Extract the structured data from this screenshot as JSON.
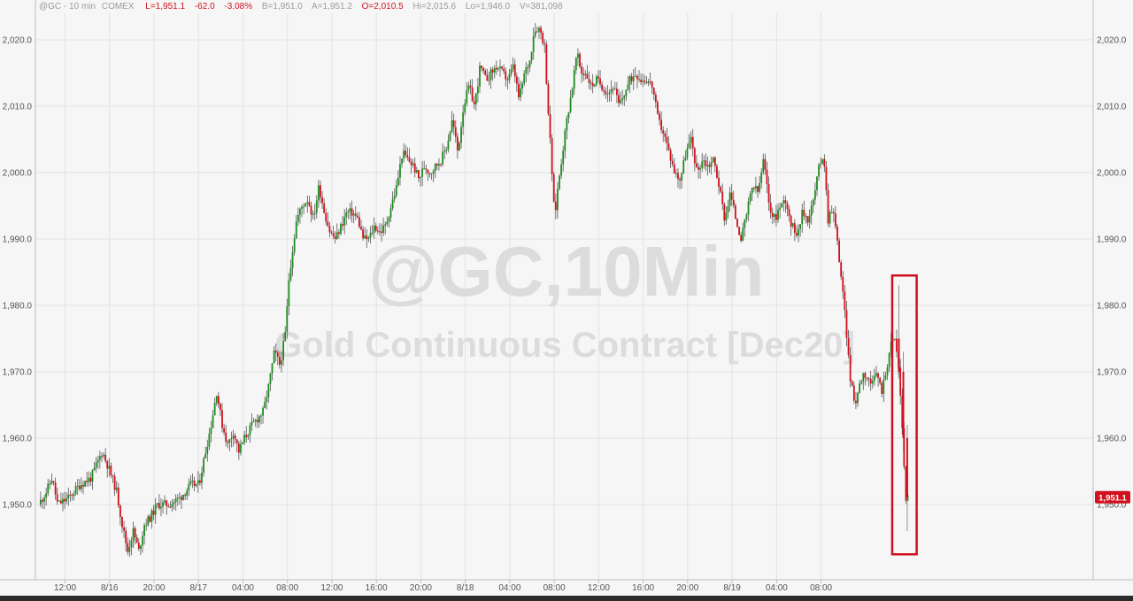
{
  "header": {
    "symbol": "@GC - 10 min",
    "exchange": "COMEX",
    "last": "L=1,951.1",
    "change": "-62.0",
    "change_pct": "-3.08%",
    "bid": "B=1,951.0",
    "ask": "A=1,951.2",
    "open": "O=2,010.5",
    "high": "Hi=2,015.6",
    "low": "Lo=1,946.0",
    "volume": "V=381,098"
  },
  "watermark": {
    "title": "@GC,10Min",
    "subtitle": "Gold Continuous Contract [Dec20]"
  },
  "last_price_label": "1,951.1",
  "colors": {
    "up": "#1e8c1e",
    "down": "#d0101c",
    "highlight_box": "#d0101c",
    "grid": "#e2e2e2"
  },
  "chart_data": {
    "type": "candlestick",
    "title": "@GC,10Min",
    "subtitle": "Gold Continuous Contract [Dec20]",
    "ylim": [
      1940,
      2025
    ],
    "y_ticks": [
      "1,950.0",
      "1,960.0",
      "1,970.0",
      "1,980.0",
      "1,990.0",
      "2,000.0",
      "2,010.0",
      "2,020.0"
    ],
    "y_tick_values": [
      1950,
      1960,
      1970,
      1980,
      1990,
      2000,
      2010,
      2020
    ],
    "x_ticks": [
      "12:00",
      "8/16",
      "20:00",
      "8/17",
      "04:00",
      "08:00",
      "12:00",
      "16:00",
      "20:00",
      "8/18",
      "04:00",
      "08:00",
      "12:00",
      "16:00",
      "20:00",
      "8/19",
      "04:00",
      "08:00"
    ],
    "x_tick_hours": [
      12,
      16,
      20,
      24,
      28,
      32,
      36,
      40,
      44,
      48,
      52,
      56,
      60,
      64,
      68,
      72,
      76,
      80
    ],
    "x_range_hours": [
      9.5,
      91.5
    ],
    "price_path": [
      [
        9.8,
        1950
      ],
      [
        10.5,
        1952
      ],
      [
        11.0,
        1954
      ],
      [
        11.5,
        1950
      ],
      [
        12.5,
        1951
      ],
      [
        13.5,
        1953
      ],
      [
        14.5,
        1954
      ],
      [
        15.5,
        1958
      ],
      [
        16.2,
        1955
      ],
      [
        16.8,
        1952
      ],
      [
        17.3,
        1947
      ],
      [
        17.8,
        1943
      ],
      [
        18.3,
        1946
      ],
      [
        18.8,
        1943
      ],
      [
        19.3,
        1947
      ],
      [
        19.8,
        1948
      ],
      [
        20.5,
        1950
      ],
      [
        21.5,
        1950
      ],
      [
        22.5,
        1951
      ],
      [
        23.5,
        1953
      ],
      [
        24.2,
        1953
      ],
      [
        24.8,
        1958
      ],
      [
        25.3,
        1962
      ],
      [
        25.8,
        1967
      ],
      [
        26.3,
        1962
      ],
      [
        26.8,
        1959
      ],
      [
        27.3,
        1961
      ],
      [
        27.8,
        1958
      ],
      [
        28.3,
        1960
      ],
      [
        29.0,
        1962
      ],
      [
        29.5,
        1963
      ],
      [
        30.0,
        1964
      ],
      [
        30.5,
        1968
      ],
      [
        31.0,
        1973
      ],
      [
        31.5,
        1971
      ],
      [
        32.0,
        1976
      ],
      [
        32.3,
        1984
      ],
      [
        32.6,
        1988
      ],
      [
        33.0,
        1993
      ],
      [
        33.5,
        1995
      ],
      [
        34.0,
        1996
      ],
      [
        34.5,
        1993
      ],
      [
        35.0,
        1998
      ],
      [
        35.5,
        1994
      ],
      [
        36.0,
        1991
      ],
      [
        36.5,
        1990
      ],
      [
        37.0,
        1992
      ],
      [
        37.5,
        1994
      ],
      [
        38.0,
        1994
      ],
      [
        38.5,
        1993
      ],
      [
        39.0,
        1990
      ],
      [
        39.5,
        1990
      ],
      [
        40.0,
        1992
      ],
      [
        40.5,
        1991
      ],
      [
        41.0,
        1992
      ],
      [
        41.5,
        1995
      ],
      [
        42.0,
        1998
      ],
      [
        42.5,
        2003
      ],
      [
        43.0,
        2002
      ],
      [
        43.5,
        2001
      ],
      [
        44.0,
        1999
      ],
      [
        44.5,
        2001
      ],
      [
        45.0,
        2000
      ],
      [
        45.5,
        2001
      ],
      [
        46.0,
        2002
      ],
      [
        46.5,
        2004
      ],
      [
        47.0,
        2008
      ],
      [
        47.5,
        2003
      ],
      [
        48.0,
        2010
      ],
      [
        48.5,
        2013
      ],
      [
        49.0,
        2010
      ],
      [
        49.5,
        2016
      ],
      [
        50.0,
        2014
      ],
      [
        50.5,
        2015
      ],
      [
        51.0,
        2016
      ],
      [
        51.5,
        2015
      ],
      [
        52.0,
        2014
      ],
      [
        52.5,
        2016
      ],
      [
        53.0,
        2011
      ],
      [
        53.5,
        2015
      ],
      [
        54.0,
        2017
      ],
      [
        54.3,
        2021
      ],
      [
        54.7,
        2022
      ],
      [
        55.0,
        2021
      ],
      [
        55.3,
        2019
      ],
      [
        55.6,
        2010
      ],
      [
        55.9,
        2002
      ],
      [
        56.2,
        1993
      ],
      [
        56.5,
        1998
      ],
      [
        56.9,
        2003
      ],
      [
        57.3,
        2008
      ],
      [
        57.8,
        2013
      ],
      [
        58.2,
        2018
      ],
      [
        58.6,
        2015
      ],
      [
        59.0,
        2015
      ],
      [
        59.5,
        2013
      ],
      [
        60.0,
        2014
      ],
      [
        60.5,
        2013
      ],
      [
        61.0,
        2012
      ],
      [
        61.5,
        2013
      ],
      [
        62.0,
        2010
      ],
      [
        62.5,
        2012
      ],
      [
        63.0,
        2014
      ],
      [
        63.5,
        2015
      ],
      [
        64.0,
        2014
      ],
      [
        64.5,
        2014
      ],
      [
        65.0,
        2013
      ],
      [
        65.5,
        2008
      ],
      [
        66.0,
        2006
      ],
      [
        66.5,
        2003
      ],
      [
        67.0,
        2000
      ],
      [
        67.5,
        1999
      ],
      [
        68.0,
        2003
      ],
      [
        68.5,
        2005
      ],
      [
        69.0,
        2000
      ],
      [
        69.5,
        2002
      ],
      [
        70.0,
        2001
      ],
      [
        70.5,
        2002
      ],
      [
        71.0,
        1998
      ],
      [
        71.5,
        1993
      ],
      [
        72.0,
        1997
      ],
      [
        72.5,
        1993
      ],
      [
        73.0,
        1990
      ],
      [
        73.5,
        1994
      ],
      [
        74.0,
        1998
      ],
      [
        74.5,
        1997
      ],
      [
        75.0,
        2002
      ],
      [
        75.5,
        1995
      ],
      [
        76.0,
        1993
      ],
      [
        76.5,
        1995
      ],
      [
        77.0,
        1996
      ],
      [
        77.5,
        1992
      ],
      [
        78.0,
        1991
      ],
      [
        78.5,
        1994
      ],
      [
        79.0,
        1993
      ],
      [
        79.5,
        1996
      ],
      [
        80.0,
        2001
      ],
      [
        80.4,
        2003
      ],
      [
        80.8,
        1993
      ],
      [
        81.2,
        1995
      ],
      [
        81.6,
        1990
      ],
      [
        82.0,
        1984
      ],
      [
        82.4,
        1977
      ],
      [
        82.8,
        1969
      ],
      [
        83.2,
        1965
      ],
      [
        83.6,
        1968
      ],
      [
        84.0,
        1970
      ],
      [
        84.4,
        1969
      ],
      [
        84.8,
        1968
      ],
      [
        85.2,
        1970
      ],
      [
        85.6,
        1967
      ],
      [
        86.0,
        1970
      ],
      [
        86.4,
        1974
      ],
      [
        86.8,
        1975
      ],
      [
        87.2,
        1970
      ],
      [
        87.5,
        1960
      ],
      [
        87.8,
        1951.1
      ]
    ],
    "series": [
      {
        "name": "Up bars",
        "color": "#1e8c1e"
      },
      {
        "name": "Down bars",
        "color": "#d0101c"
      }
    ],
    "last_price": 1951.1,
    "annotations": [
      {
        "type": "box",
        "x_hours": [
          86.4,
          88.6
        ],
        "y_values": [
          1942.5,
          1984.5
        ],
        "color": "#d0101c"
      }
    ]
  }
}
